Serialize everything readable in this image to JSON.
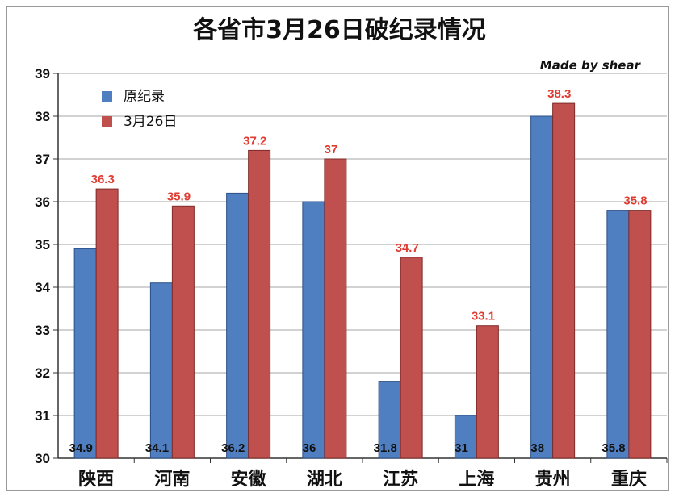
{
  "chart_data": {
    "type": "bar",
    "title": "各省市3月26日破纪录情况",
    "credit": "Made by shear",
    "categories": [
      "陕西",
      "河南",
      "安徽",
      "湖北",
      "江苏",
      "上海",
      "贵州",
      "重庆"
    ],
    "series": [
      {
        "name": "原纪录",
        "color": "#4f7fc1",
        "values": [
          34.9,
          34.1,
          36.2,
          36,
          31.8,
          31,
          38,
          35.8
        ],
        "labels": [
          "34.9",
          "34.1",
          "36.2",
          "36",
          "31.8",
          "31",
          "38",
          "35.8"
        ]
      },
      {
        "name": "3月26日",
        "color": "#c0504d",
        "values": [
          36.3,
          35.9,
          37.2,
          37,
          34.7,
          33.1,
          38.3,
          35.8
        ],
        "labels": [
          "36.3",
          "35.9",
          "37.2",
          "37",
          "34.7",
          "33.1",
          "38.3",
          "35.8"
        ]
      }
    ],
    "data_label_color": "#e03b30",
    "ylim": [
      30,
      39
    ],
    "yticks": [
      "30",
      "31",
      "32",
      "33",
      "34",
      "35",
      "36",
      "37",
      "38",
      "39"
    ],
    "grid": true,
    "legend_position": "top-left",
    "xlabel": "",
    "ylabel": ""
  }
}
